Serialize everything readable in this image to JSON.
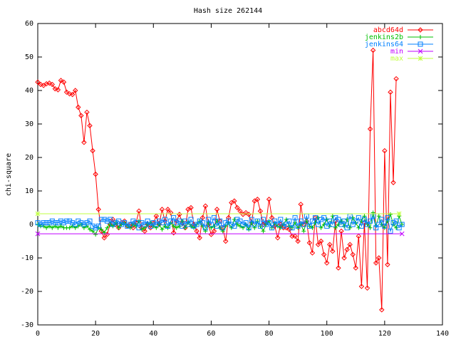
{
  "chart_data": {
    "type": "line",
    "title": "Hash size 262144",
    "y_label": "chi-square",
    "x": [
      0,
      1,
      2,
      3,
      4,
      5,
      6,
      7,
      8,
      9,
      10,
      11,
      12,
      13,
      14,
      15,
      16,
      17,
      18,
      19,
      20,
      21,
      22,
      23,
      24,
      25,
      26,
      27,
      28,
      29,
      30,
      31,
      32,
      33,
      34,
      35,
      36,
      37,
      38,
      39,
      40,
      41,
      42,
      43,
      44,
      45,
      46,
      47,
      48,
      49,
      50,
      51,
      52,
      53,
      54,
      55,
      56,
      57,
      58,
      59,
      60,
      61,
      62,
      63,
      64,
      65,
      66,
      67,
      68,
      69,
      70,
      71,
      72,
      73,
      74,
      75,
      76,
      77,
      78,
      79,
      80,
      81,
      82,
      83,
      84,
      85,
      86,
      87,
      88,
      89,
      90,
      91,
      92,
      93,
      94,
      95,
      96,
      97,
      98,
      99,
      100,
      101,
      102,
      103,
      104,
      105,
      106,
      107,
      108,
      109,
      110,
      111,
      112,
      113,
      114,
      115,
      116,
      117,
      118,
      119,
      120,
      121,
      122,
      123,
      124,
      125,
      126
    ],
    "series": [
      {
        "name": "abcd64d",
        "color": "#ff0000",
        "marker": "diamond",
        "values": [
          42.5,
          41.8,
          41.5,
          42,
          42.2,
          41.8,
          40.5,
          40.2,
          43,
          42.5,
          39.5,
          39,
          38.8,
          40,
          35,
          32.5,
          24.5,
          33.5,
          29.5,
          22,
          15,
          4.5,
          -2,
          -4,
          -3,
          0,
          1.5,
          0,
          -1,
          0.5,
          1,
          -0.5,
          0,
          -1,
          0.5,
          4,
          -1,
          -2,
          0,
          -1,
          0.5,
          2.5,
          0,
          4.5,
          1,
          4.5,
          3.5,
          -2.5,
          1,
          3,
          0.5,
          -1,
          4.5,
          5,
          0,
          -2,
          -4,
          2,
          5.5,
          0,
          -3,
          -2,
          4.5,
          1,
          -1,
          -5,
          2,
          6.5,
          7,
          5,
          4,
          3,
          3.5,
          3,
          0.5,
          7,
          7.5,
          4,
          0,
          0.5,
          7.5,
          2,
          -0.5,
          -4,
          0,
          -1,
          -1,
          -1.5,
          -3.5,
          -3.5,
          -5,
          6,
          0,
          1,
          -5.5,
          -8.5,
          2,
          -6,
          -5,
          -9,
          -11.5,
          -6,
          -8,
          1,
          -13,
          -2,
          -10,
          -7.5,
          -6,
          -9,
          -13,
          -3.5,
          -18.5,
          0.5,
          -19,
          28.5,
          52,
          -11.5,
          -10,
          -25.5,
          22,
          -12,
          39.5,
          12.5,
          43.5,
          null,
          null
        ]
      },
      {
        "name": "jenkins2b",
        "color": "#00c000",
        "marker": "plus",
        "values": [
          0,
          -0.5,
          -0.5,
          -1,
          -0.5,
          -1,
          -0.5,
          -1,
          -0.5,
          -1,
          -1,
          -1,
          -0.5,
          -1,
          -0.5,
          0,
          -1,
          -0.5,
          -1.5,
          -2,
          -3,
          -1,
          -1.5,
          -2.5,
          -1,
          0,
          -0.5,
          0.5,
          -1,
          0,
          0.5,
          -0.5,
          -1,
          0,
          -0.5,
          1,
          -1.5,
          -1,
          0,
          0.5,
          -0.5,
          -1,
          0,
          -1.5,
          -0.5,
          -1,
          0.5,
          -0.5,
          -1,
          -0.5,
          1,
          -1,
          0.5,
          -0.5,
          -1,
          0,
          1,
          -0.5,
          -2,
          0.5,
          -1,
          -0.5,
          1,
          -1,
          -2,
          -0.5,
          0.5,
          -1,
          1.5,
          0,
          -0.5,
          -1,
          0,
          -1.5,
          0.5,
          -1,
          1,
          -0.5,
          -2,
          0,
          1,
          -1,
          0.5,
          -0.5,
          -1,
          0,
          1.5,
          -0.5,
          -1,
          0.5,
          -1,
          0,
          -2,
          1,
          -0.5,
          -1,
          0.5,
          2,
          -1,
          0,
          1.5,
          -0.5,
          2.5,
          -1,
          0,
          1,
          -0.5,
          1.5,
          -1,
          2,
          0.5,
          -1,
          1,
          2.5,
          0,
          -1,
          3.5,
          -0.5,
          2.5,
          0,
          -1,
          1,
          3,
          0,
          -1,
          2.5,
          0
        ]
      },
      {
        "name": "jenkins64",
        "color": "#0080ff",
        "marker": "square",
        "values": [
          0.5,
          0,
          0.5,
          0.5,
          0.5,
          1,
          0.5,
          0.5,
          1,
          0.5,
          1,
          1,
          0.5,
          0,
          1,
          0.5,
          0,
          0.5,
          1,
          -0.5,
          -1,
          -0.5,
          1.5,
          1.5,
          1,
          1.5,
          0,
          0.5,
          1,
          0,
          0.5,
          -0.5,
          0,
          1,
          0.5,
          -1,
          0.5,
          0,
          1,
          -0.5,
          0.5,
          0,
          1,
          0.5,
          1.5,
          -0.5,
          1,
          2,
          0.5,
          1,
          -0.5,
          1,
          0,
          1.5,
          -0.5,
          0,
          1,
          0.5,
          -1,
          1.5,
          0,
          2,
          -0.5,
          1,
          -1,
          0.5,
          1,
          0,
          -0.5,
          1.5,
          1,
          0,
          0.5,
          -1,
          1.5,
          0,
          1,
          -0.5,
          1.5,
          0,
          0.5,
          -1,
          1,
          0,
          1.5,
          -0.5,
          0,
          1,
          -1,
          2,
          -0.5,
          1,
          0,
          2.5,
          -0.5,
          1,
          2,
          0,
          1.5,
          2,
          -0.5,
          1,
          0,
          2,
          1.5,
          0,
          1,
          -1,
          2.5,
          0,
          1,
          2,
          -0.5,
          1.5,
          0,
          1,
          2.5,
          -1,
          0,
          1.5,
          -0.5,
          2,
          -2,
          0.5,
          1,
          -1,
          0
        ]
      },
      {
        "name": "min",
        "color": "#c000ff",
        "marker": "cross",
        "x": [
          0,
          126
        ],
        "values": [
          -2.8,
          -2.8
        ]
      },
      {
        "name": "max",
        "color": "#c0ff40",
        "marker": "star",
        "x": [
          0,
          125
        ],
        "values": [
          3.2,
          3.2
        ]
      }
    ],
    "xlim": [
      0,
      140
    ],
    "xticks": [
      0,
      20,
      40,
      60,
      80,
      100,
      120,
      140
    ],
    "ylim": [
      -30,
      60
    ],
    "yticks": [
      -30,
      -20,
      -10,
      0,
      10,
      20,
      30,
      40,
      50,
      60
    ],
    "grid": false,
    "legend": "top-right"
  }
}
